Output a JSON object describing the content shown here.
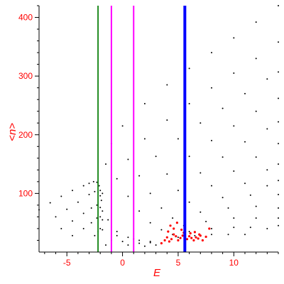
{
  "chart_data": {
    "type": "scatter",
    "title": "",
    "xlabel": "E",
    "ylabel": "<n>",
    "xlim": [
      -7.5,
      14
    ],
    "ylim": [
      0,
      420
    ],
    "x_ticks": [
      -5,
      0,
      5,
      10
    ],
    "y_ticks": [
      100,
      200,
      300,
      400
    ],
    "x_tick_labels": [
      "-5",
      "0",
      "5",
      "10"
    ],
    "y_tick_labels": [
      "100",
      "200",
      "300",
      "400"
    ],
    "grid": false,
    "legend": "none",
    "axis_color": "#000000",
    "label_color": "#ff0000",
    "series": [
      {
        "color": "#000000",
        "marker": "dot",
        "values": [
          [
            -7.5,
            72
          ],
          [
            -6.5,
            84
          ],
          [
            -5.5,
            95
          ],
          [
            -4.5,
            105
          ],
          [
            -3.5,
            113
          ],
          [
            -3,
            117
          ],
          [
            -2.6,
            120
          ],
          [
            -2.3,
            119
          ],
          [
            -2.1,
            113
          ],
          [
            -2.0,
            105
          ],
          [
            -6.0,
            60
          ],
          [
            -5.0,
            73
          ],
          [
            -4.0,
            85
          ],
          [
            -3.0,
            98
          ],
          [
            -2.5,
            103
          ],
          [
            -2.2,
            102
          ],
          [
            -2.0,
            96
          ],
          [
            -1.9,
            88
          ],
          [
            -5.5,
            40
          ],
          [
            -4.5,
            53
          ],
          [
            -3.5,
            66
          ],
          [
            -2.8,
            75
          ],
          [
            -2.3,
            80
          ],
          [
            -2.0,
            76
          ],
          [
            -1.8,
            70
          ],
          [
            -4.5,
            28
          ],
          [
            -3.5,
            40
          ],
          [
            -2.8,
            50
          ],
          [
            -2.3,
            58
          ],
          [
            -2.0,
            60
          ],
          [
            -1.8,
            55
          ],
          [
            -2.5,
            28
          ],
          [
            -2.2,
            35
          ],
          [
            -2.0,
            40
          ],
          [
            -1.8,
            38
          ],
          [
            -1.8,
            100
          ],
          [
            -1.5,
            150
          ],
          [
            -1.0,
            185
          ],
          [
            0,
            215
          ],
          [
            2,
            253
          ],
          [
            4,
            285
          ],
          [
            6,
            313
          ],
          [
            8,
            340
          ],
          [
            10,
            365
          ],
          [
            12,
            392
          ],
          [
            14,
            420
          ],
          [
            -1.3,
            55
          ],
          [
            -0.5,
            125
          ],
          [
            0.5,
            158
          ],
          [
            2,
            193
          ],
          [
            4,
            225
          ],
          [
            6,
            253
          ],
          [
            8,
            280
          ],
          [
            10,
            305
          ],
          [
            12,
            330
          ],
          [
            14,
            358
          ],
          [
            -0.5,
            35
          ],
          [
            0.5,
            95
          ],
          [
            1.5,
            130
          ],
          [
            3,
            163
          ],
          [
            5,
            193
          ],
          [
            7,
            220
          ],
          [
            9,
            245
          ],
          [
            11,
            270
          ],
          [
            13,
            295
          ],
          [
            14,
            307
          ],
          [
            0.5,
            25
          ],
          [
            1.5,
            70
          ],
          [
            2.5,
            100
          ],
          [
            4,
            133
          ],
          [
            6,
            163
          ],
          [
            8,
            190
          ],
          [
            10,
            215
          ],
          [
            12,
            240
          ],
          [
            14,
            262
          ],
          [
            1.5,
            20
          ],
          [
            2.5,
            50
          ],
          [
            3.5,
            75
          ],
          [
            5,
            105
          ],
          [
            7,
            135
          ],
          [
            9,
            162
          ],
          [
            11,
            188
          ],
          [
            13,
            210
          ],
          [
            14,
            222
          ],
          [
            2.5,
            18
          ],
          [
            3.5,
            38
          ],
          [
            4.5,
            58
          ],
          [
            6,
            85
          ],
          [
            8,
            113
          ],
          [
            10,
            138
          ],
          [
            12,
            162
          ],
          [
            14,
            185
          ],
          [
            3.5,
            15
          ],
          [
            4.5,
            30
          ],
          [
            5.5,
            45
          ],
          [
            7,
            68
          ],
          [
            9,
            93
          ],
          [
            11,
            117
          ],
          [
            13,
            140
          ],
          [
            14,
            150
          ],
          [
            5,
            25
          ],
          [
            6,
            35
          ],
          [
            7.5,
            52
          ],
          [
            9.5,
            75
          ],
          [
            11.5,
            97
          ],
          [
            13,
            113
          ],
          [
            14,
            122
          ],
          [
            6.5,
            28
          ],
          [
            8,
            40
          ],
          [
            10,
            58
          ],
          [
            12,
            78
          ],
          [
            14,
            98
          ],
          [
            8,
            30
          ],
          [
            10,
            42
          ],
          [
            12,
            58
          ],
          [
            14,
            75
          ],
          [
            9.5,
            30
          ],
          [
            11.5,
            42
          ],
          [
            14,
            58
          ],
          [
            11,
            30
          ],
          [
            13,
            40
          ],
          [
            14,
            45
          ],
          [
            -1.5,
            12
          ],
          [
            -1.0,
            20
          ],
          [
            -0.5,
            28
          ],
          [
            0,
            18
          ],
          [
            0.5,
            12
          ],
          [
            1,
            22
          ],
          [
            1.5,
            15
          ],
          [
            2,
            10
          ],
          [
            2.5,
            16
          ],
          [
            3,
            12
          ]
        ]
      },
      {
        "color": "#ff0000",
        "marker": "dot",
        "values": [
          [
            3.5,
            15
          ],
          [
            3.8,
            20
          ],
          [
            4.0,
            25
          ],
          [
            4.2,
            18
          ],
          [
            4.4,
            22
          ],
          [
            4.6,
            30
          ],
          [
            4.8,
            27
          ],
          [
            5.0,
            20
          ],
          [
            5.2,
            24
          ],
          [
            5.4,
            28
          ],
          [
            5.6,
            18
          ],
          [
            5.8,
            22
          ],
          [
            6.0,
            27
          ],
          [
            6.2,
            24
          ],
          [
            6.4,
            20
          ],
          [
            6.6,
            25
          ],
          [
            6.8,
            23
          ],
          [
            7.0,
            28
          ],
          [
            7.2,
            20
          ],
          [
            7.5,
            26
          ],
          [
            4.1,
            35
          ],
          [
            4.3,
            45
          ],
          [
            4.6,
            40
          ],
          [
            4.9,
            50
          ],
          [
            5.3,
            38
          ],
          [
            5.5,
            33
          ],
          [
            6.1,
            32
          ],
          [
            6.5,
            34
          ],
          [
            6.9,
            30
          ],
          [
            7.8,
            40
          ]
        ]
      }
    ],
    "vertical_lines": [
      {
        "x": -2.2,
        "color": "#228b22",
        "width": 2
      },
      {
        "x": -1.0,
        "color": "#ff00ff",
        "width": 2
      },
      {
        "x": 1.0,
        "color": "#ff00ff",
        "width": 2
      },
      {
        "x": 5.6,
        "color": "#0000ff",
        "width": 4
      }
    ]
  }
}
